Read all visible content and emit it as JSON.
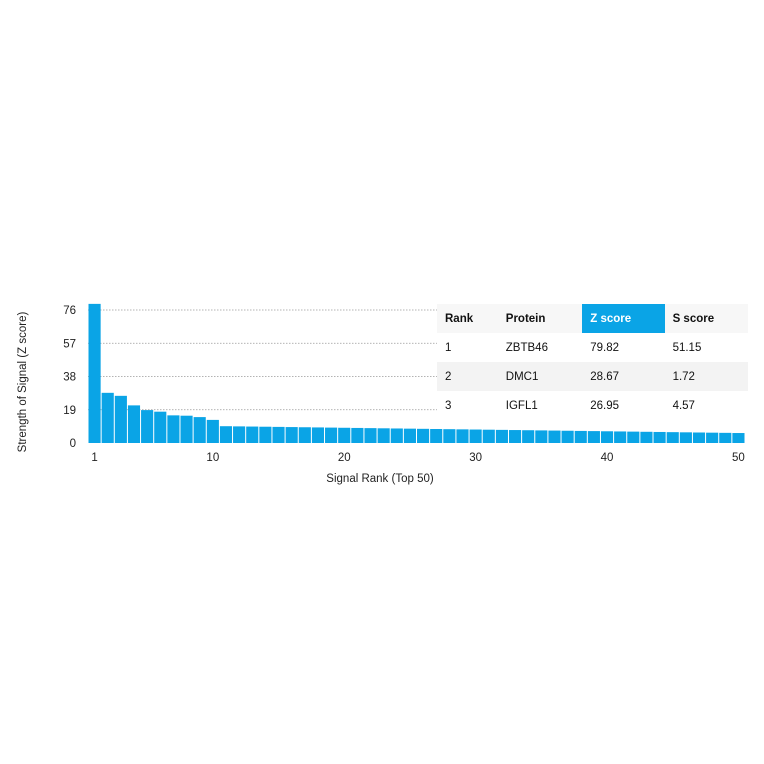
{
  "chart_data": {
    "type": "bar",
    "xlabel": "Signal Rank (Top 50)",
    "ylabel": "Strength of Signal (Z score)",
    "ylim": [
      0,
      76
    ],
    "yticks": [
      0,
      19,
      38,
      57,
      76
    ],
    "xticks": [
      1,
      10,
      20,
      30,
      40,
      50
    ],
    "grid": "dotted horizontal lines at y ticks",
    "bar_color": "#0aa4e6",
    "x": [
      1,
      2,
      3,
      4,
      5,
      6,
      7,
      8,
      9,
      10,
      11,
      12,
      13,
      14,
      15,
      16,
      17,
      18,
      19,
      20,
      21,
      22,
      23,
      24,
      25,
      26,
      27,
      28,
      29,
      30,
      31,
      32,
      33,
      34,
      35,
      36,
      37,
      38,
      39,
      40,
      41,
      42,
      43,
      44,
      45,
      46,
      47,
      48,
      49,
      50
    ],
    "values": [
      79.82,
      28.67,
      26.95,
      21.5,
      18.8,
      17.9,
      15.8,
      15.6,
      14.8,
      13.2,
      9.6,
      9.5,
      9.4,
      9.3,
      9.2,
      9.1,
      9.0,
      8.9,
      8.8,
      8.7,
      8.6,
      8.5,
      8.4,
      8.3,
      8.2,
      8.1,
      8.0,
      7.9,
      7.8,
      7.7,
      7.6,
      7.5,
      7.4,
      7.3,
      7.2,
      7.1,
      7.0,
      6.9,
      6.8,
      6.7,
      6.6,
      6.5,
      6.4,
      6.3,
      6.2,
      6.1,
      6.0,
      5.9,
      5.8,
      5.7
    ],
    "table": {
      "columns": [
        "Rank",
        "Protein",
        "Z score",
        "S score"
      ],
      "highlight_column": "Z score",
      "rows": [
        [
          "1",
          "ZBTB46",
          "79.82",
          "51.15"
        ],
        [
          "2",
          "DMC1",
          "28.67",
          "1.72"
        ],
        [
          "3",
          "IGFL1",
          "26.95",
          "4.57"
        ]
      ]
    }
  }
}
